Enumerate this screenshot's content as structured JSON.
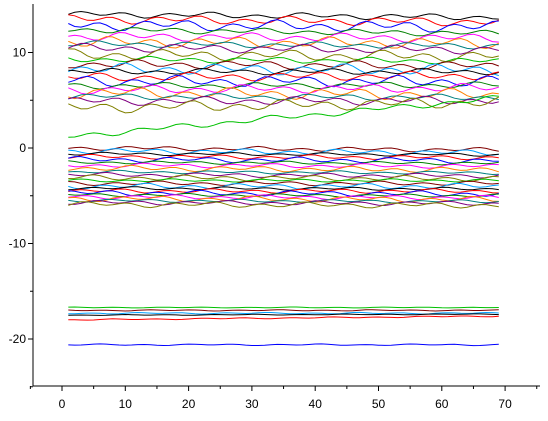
{
  "chart_data": {
    "type": "line",
    "title": "",
    "xlabel": "",
    "ylabel": "",
    "xlim": [
      -5,
      75
    ],
    "ylim": [
      -25,
      14.5
    ],
    "x_ticks": [
      0,
      10,
      20,
      30,
      40,
      50,
      60,
      70
    ],
    "y_ticks": [
      10,
      0,
      -10,
      -20
    ],
    "y_tick_labels": [
      "10",
      "0",
      "-10",
      "-20"
    ],
    "x_range": [
      1,
      69
    ],
    "grid": false,
    "legend": "none",
    "colors": [
      "#000000",
      "#ff0000",
      "#0000ff",
      "#008000",
      "#ff00ff",
      "#ff8000",
      "#008080",
      "#800080",
      "#808000",
      "#00c000",
      "#800000",
      "#00a0ff"
    ],
    "series": [
      {
        "values": [
          14.0,
          13.7
        ]
      },
      {
        "values": [
          13.5,
          13.2
        ]
      },
      {
        "values": [
          12.9,
          12.7
        ]
      },
      {
        "values": [
          12.4,
          12.0
        ]
      },
      {
        "values": [
          11.7,
          11.5
        ]
      },
      {
        "values": [
          11.1,
          11.0
        ]
      },
      {
        "values": [
          10.9,
          10.7
        ]
      },
      {
        "values": [
          10.5,
          10.3
        ]
      },
      {
        "values": [
          9.8,
          9.6
        ]
      },
      {
        "values": [
          9.3,
          9.1
        ]
      },
      {
        "values": [
          8.8,
          8.6
        ]
      },
      {
        "values": [
          8.3,
          8.2
        ]
      },
      {
        "values": [
          8.0,
          8.0
        ]
      },
      {
        "values": [
          7.4,
          7.6
        ]
      },
      {
        "values": [
          7.0,
          7.0
        ]
      },
      {
        "values": [
          6.5,
          6.6
        ]
      },
      {
        "values": [
          6.1,
          6.3
        ]
      },
      {
        "values": [
          5.8,
          5.6
        ]
      },
      {
        "values": [
          5.4,
          5.3
        ]
      },
      {
        "values": [
          4.9,
          5.0
        ]
      },
      {
        "values": [
          4.2,
          4.8
        ]
      },
      {
        "values": [
          1.2,
          5.2
        ]
      },
      {
        "values": [
          0.0,
          -0.2
        ]
      },
      {
        "values": [
          -0.3,
          -0.5
        ]
      },
      {
        "values": [
          -0.6,
          -0.7
        ]
      },
      {
        "values": [
          -0.9,
          -1.0
        ]
      },
      {
        "values": [
          -1.2,
          -1.3
        ]
      },
      {
        "values": [
          -1.5,
          -1.6
        ]
      },
      {
        "values": [
          -1.8,
          -1.9
        ]
      },
      {
        "values": [
          -2.1,
          -2.3
        ]
      },
      {
        "values": [
          -2.5,
          -2.6
        ]
      },
      {
        "values": [
          -2.8,
          -2.9
        ]
      },
      {
        "values": [
          -3.1,
          -3.2
        ]
      },
      {
        "values": [
          -3.4,
          -3.4
        ]
      },
      {
        "values": [
          -3.7,
          -3.7
        ]
      },
      {
        "values": [
          -4.0,
          -4.0
        ]
      },
      {
        "values": [
          -4.2,
          -4.3
        ]
      },
      {
        "values": [
          -4.5,
          -4.5
        ]
      },
      {
        "values": [
          -4.7,
          -4.8
        ]
      },
      {
        "values": [
          -4.9,
          -5.0
        ]
      },
      {
        "values": [
          -5.1,
          -5.2
        ]
      },
      {
        "values": [
          -5.3,
          -5.4
        ]
      },
      {
        "values": [
          -5.5,
          -5.6
        ]
      },
      {
        "values": [
          -5.7,
          -5.8
        ]
      },
      {
        "values": [
          -5.9,
          -6.0
        ]
      },
      {
        "values": [
          -16.7,
          -16.7
        ]
      },
      {
        "values": [
          -17.0,
          -17.0
        ]
      },
      {
        "values": [
          -17.3,
          -17.3
        ]
      },
      {
        "values": [
          -17.5,
          -17.4
        ]
      },
      {
        "values": [
          -18.0,
          -17.6
        ]
      },
      {
        "values": [
          -20.6,
          -20.6
        ]
      }
    ]
  }
}
